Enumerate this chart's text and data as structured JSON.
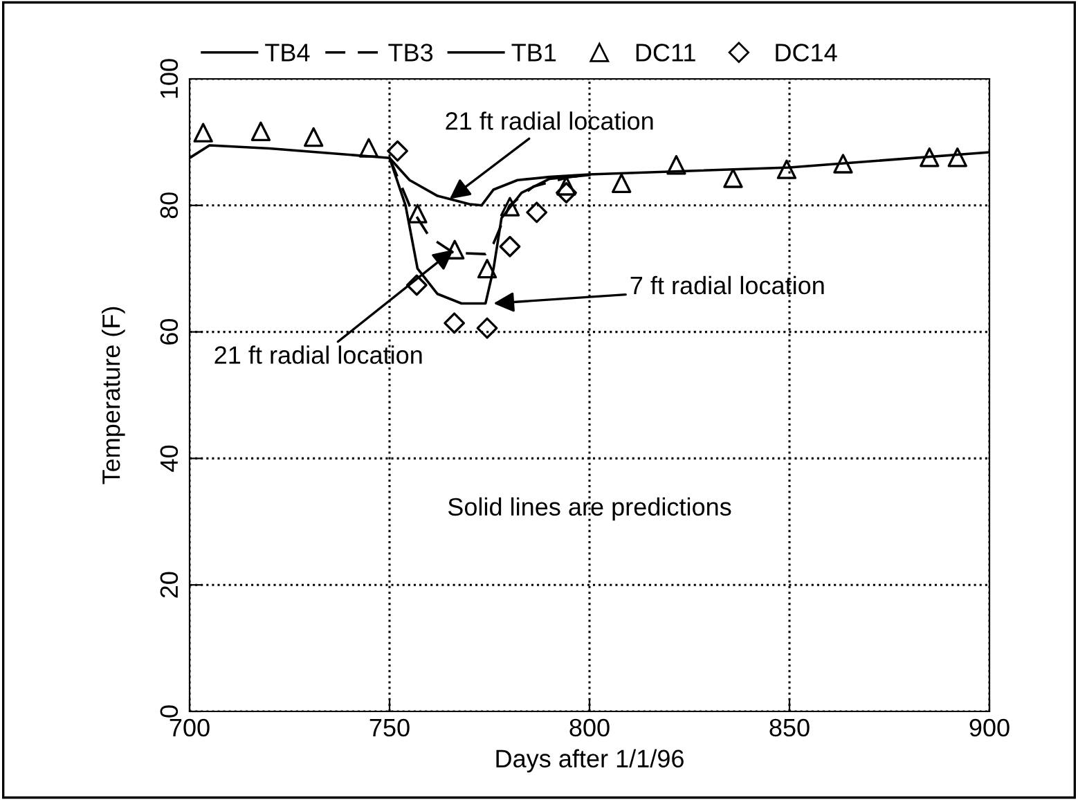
{
  "chart_data": {
    "type": "line",
    "xlabel": "Days after 1/1/96",
    "ylabel": "Temperature (F)",
    "xlim": [
      700,
      900
    ],
    "ylim": [
      0,
      100
    ],
    "xticks": [
      700,
      750,
      800,
      850,
      900
    ],
    "yticks": [
      0,
      20,
      40,
      60,
      80,
      100
    ],
    "grid": true,
    "legend": "top",
    "series": [
      {
        "name": "TB4",
        "color": "#000000",
        "line_style": "solid",
        "marker": "none",
        "x": [
          700,
          705,
          720,
          750,
          755,
          762,
          770,
          773,
          776,
          782,
          790,
          800,
          850,
          900
        ],
        "values": [
          87.5,
          89.5,
          89,
          87.5,
          84,
          81.5,
          80.2,
          80,
          82.5,
          84,
          84.5,
          84.9,
          86,
          88.4
        ]
      },
      {
        "name": "TB3",
        "color": "#000000",
        "line_style": "dashed",
        "marker": "none",
        "x": [
          750,
          755,
          760,
          766,
          774,
          776,
          780,
          786,
          795,
          800
        ],
        "values": [
          87.5,
          80,
          75,
          72.5,
          72.3,
          74,
          80,
          83,
          84.5,
          84.8
        ]
      },
      {
        "name": "TB1",
        "color": "#000000",
        "line_style": "solid",
        "marker": "none",
        "x": [
          750,
          754,
          757,
          762,
          768,
          774,
          776,
          778,
          783,
          790,
          800
        ],
        "values": [
          87.5,
          80,
          70,
          66,
          64.5,
          64.5,
          70,
          78,
          82,
          84.2,
          84.8
        ]
      },
      {
        "name": "DC11",
        "type": "scatter",
        "color": "#000000",
        "marker": "triangle",
        "x": [
          703.4,
          717.8,
          731,
          744.8,
          757,
          766.3,
          774.4,
          780.1,
          794.2,
          808,
          821.7,
          835.9,
          849.3,
          863.4,
          885,
          892
        ],
        "values": [
          91.5,
          91.7,
          90.8,
          89.1,
          78.7,
          73,
          70,
          79.8,
          83.1,
          83.5,
          86.4,
          84.3,
          85.7,
          86.6,
          87.6,
          87.6
        ]
      },
      {
        "name": "DC14",
        "type": "scatter",
        "color": "#000000",
        "marker": "diamond",
        "x": [
          752,
          756.8,
          766.2,
          774.4,
          780.1,
          786.8,
          794.2
        ],
        "values": [
          88.6,
          67.4,
          61.4,
          60.6,
          73.5,
          78.9,
          82
        ]
      }
    ],
    "annotations": [
      {
        "text": "21 ft radial location",
        "x": 765,
        "y": 81
      },
      {
        "text": "7 ft radial location",
        "x": 776,
        "y": 64.5
      },
      {
        "text": "21 ft radial location",
        "x": 766,
        "y": 73
      },
      "Solid lines are predictions"
    ]
  }
}
